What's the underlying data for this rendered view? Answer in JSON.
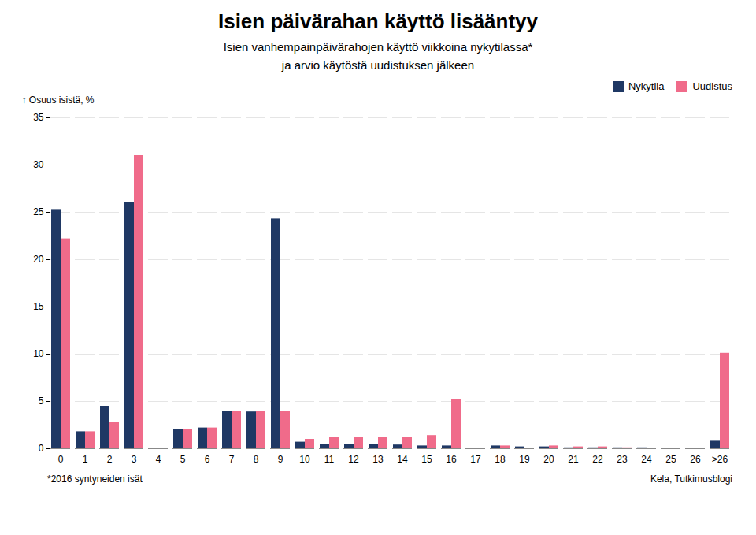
{
  "chart_data": {
    "type": "bar",
    "title": "Isien päivärahan käyttö lisääntyy",
    "subtitle": "Isien vanhempainpäivärahojen käyttö viikkoina nykytilassa*\nja arvio käytöstä uudistuksen jälkeen",
    "ylabel": "Osuus isistä, %",
    "footnote": "*2016 syntyneiden isät",
    "source": "Kela, Tutkimusblogi",
    "categories": [
      "0",
      "1",
      "2",
      "3",
      "4",
      "5",
      "6",
      "7",
      "8",
      "9",
      "10",
      "11",
      "12",
      "13",
      "14",
      "15",
      "16",
      "17",
      "18",
      "19",
      "20",
      "21",
      "22",
      "23",
      "24",
      "25",
      "26",
      ">26"
    ],
    "series": [
      {
        "name": "Nykytila",
        "color": "#1f3864",
        "values": [
          25.3,
          1.8,
          4.5,
          26.0,
          0.0,
          2.0,
          2.2,
          4.0,
          3.9,
          24.3,
          0.7,
          0.5,
          0.5,
          0.5,
          0.4,
          0.3,
          0.3,
          0.0,
          0.3,
          0.2,
          0.2,
          0.1,
          0.1,
          0.1,
          0.1,
          0.0,
          0.0,
          0.8
        ]
      },
      {
        "name": "Uudistus",
        "color": "#f06b8a",
        "values": [
          22.2,
          1.8,
          2.8,
          31.0,
          0.0,
          2.0,
          2.2,
          4.0,
          4.0,
          4.0,
          1.0,
          1.2,
          1.2,
          1.2,
          1.2,
          1.4,
          5.2,
          0.0,
          0.3,
          0.0,
          0.3,
          0.2,
          0.2,
          0.1,
          0.0,
          0.0,
          0.0,
          10.1
        ]
      }
    ],
    "ylim": [
      0,
      35
    ],
    "yticks": [
      0,
      5,
      10,
      15,
      20,
      25,
      30,
      35
    ],
    "grid": true,
    "legend": "top-right"
  }
}
